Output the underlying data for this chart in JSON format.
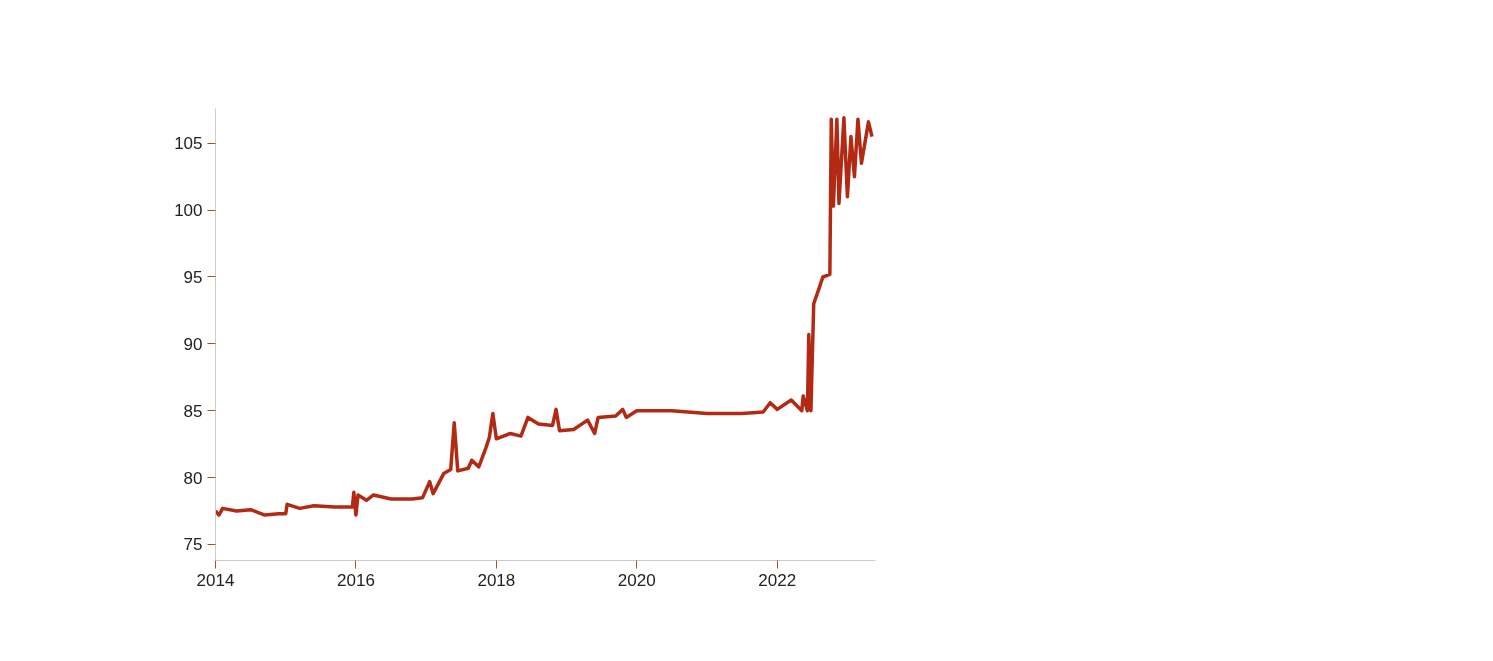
{
  "chart_data": {
    "type": "line",
    "x": [
      2014.0,
      2014.05,
      2014.1,
      2014.3,
      2014.5,
      2014.7,
      2014.9,
      2015.0,
      2015.02,
      2015.2,
      2015.4,
      2015.7,
      2015.95,
      2015.97,
      2016.0,
      2016.03,
      2016.15,
      2016.25,
      2016.5,
      2016.8,
      2016.95,
      2017.05,
      2017.1,
      2017.25,
      2017.35,
      2017.4,
      2017.45,
      2017.6,
      2017.65,
      2017.75,
      2017.85,
      2017.9,
      2017.95,
      2018.0,
      2018.2,
      2018.35,
      2018.45,
      2018.6,
      2018.8,
      2018.85,
      2018.9,
      2019.1,
      2019.3,
      2019.4,
      2019.45,
      2019.7,
      2019.8,
      2019.85,
      2020.0,
      2020.5,
      2021.0,
      2021.5,
      2021.8,
      2021.9,
      2022.0,
      2022.2,
      2022.35,
      2022.37,
      2022.43,
      2022.45,
      2022.48,
      2022.52,
      2022.6,
      2022.65,
      2022.75,
      2022.77,
      2022.8,
      2022.85,
      2022.88,
      2022.95,
      2023.0,
      2023.05,
      2023.1,
      2023.15,
      2023.2,
      2023.3,
      2023.35
    ],
    "series": [
      {
        "color": "#b22a14",
        "values": [
          77.5,
          77.2,
          77.7,
          77.5,
          77.6,
          77.2,
          77.3,
          77.3,
          78.0,
          77.7,
          77.9,
          77.8,
          77.8,
          78.9,
          77.2,
          78.7,
          78.3,
          78.7,
          78.4,
          78.4,
          78.5,
          79.7,
          78.8,
          80.3,
          80.6,
          84.1,
          80.5,
          80.7,
          81.3,
          80.8,
          82.2,
          83.0,
          84.8,
          82.9,
          83.3,
          83.1,
          84.5,
          84.0,
          83.9,
          85.1,
          83.5,
          83.6,
          84.3,
          83.3,
          84.5,
          84.6,
          85.1,
          84.5,
          85.0,
          85.0,
          84.8,
          84.8,
          84.9,
          85.6,
          85.1,
          85.8,
          85.0,
          86.1,
          85.0,
          90.7,
          85.0,
          93.0,
          94.2,
          95.0,
          95.2,
          106.8,
          100.3,
          106.8,
          100.5,
          106.9,
          101.0,
          105.5,
          102.5,
          106.8,
          103.5,
          106.6,
          105.5
        ]
      }
    ],
    "xlim": [
      2014,
      2023.4
    ],
    "ylim": [
      73.8,
      107.6
    ],
    "xticks": [
      2014,
      2016,
      2018,
      2020,
      2022
    ],
    "yticks": [
      75,
      80,
      85,
      90,
      95,
      100,
      105
    ],
    "grid": false,
    "line_style": "solid",
    "marker": "none"
  }
}
